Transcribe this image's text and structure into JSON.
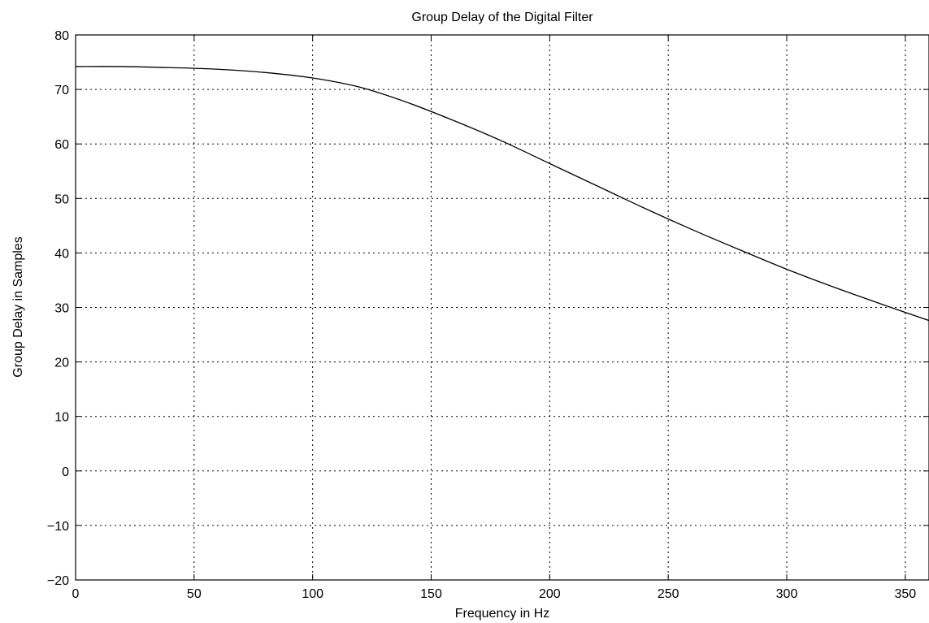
{
  "chart_data": {
    "type": "line",
    "title": "Group Delay of the Digital Filter",
    "xlabel": "Frequency in Hz",
    "ylabel": "Group Delay in Samples",
    "xlim": [
      0,
      360
    ],
    "ylim": [
      -20,
      80
    ],
    "xticks": [
      0,
      50,
      100,
      150,
      200,
      250,
      300,
      350
    ],
    "yticks": [
      -20,
      -10,
      0,
      10,
      20,
      30,
      40,
      50,
      60,
      70,
      80
    ],
    "xtick_labels": [
      "0",
      "50",
      "100",
      "150",
      "200",
      "250",
      "300",
      "350"
    ],
    "ytick_labels": [
      "−20",
      "−10",
      "0",
      "10",
      "20",
      "30",
      "40",
      "50",
      "60",
      "70",
      "80"
    ],
    "grid": true,
    "series": [
      {
        "color": "#000000",
        "x": [
          0,
          20,
          40,
          60,
          80,
          100,
          120,
          140,
          160,
          180,
          200,
          220,
          240,
          260,
          280,
          300,
          320,
          340,
          360
        ],
        "y": [
          74.2,
          74.2,
          74.0,
          73.7,
          73.1,
          72.1,
          70.4,
          67.6,
          64.2,
          60.5,
          56.4,
          52.3,
          48.2,
          44.3,
          40.6,
          37.0,
          33.7,
          30.6,
          27.6
        ]
      }
    ]
  }
}
